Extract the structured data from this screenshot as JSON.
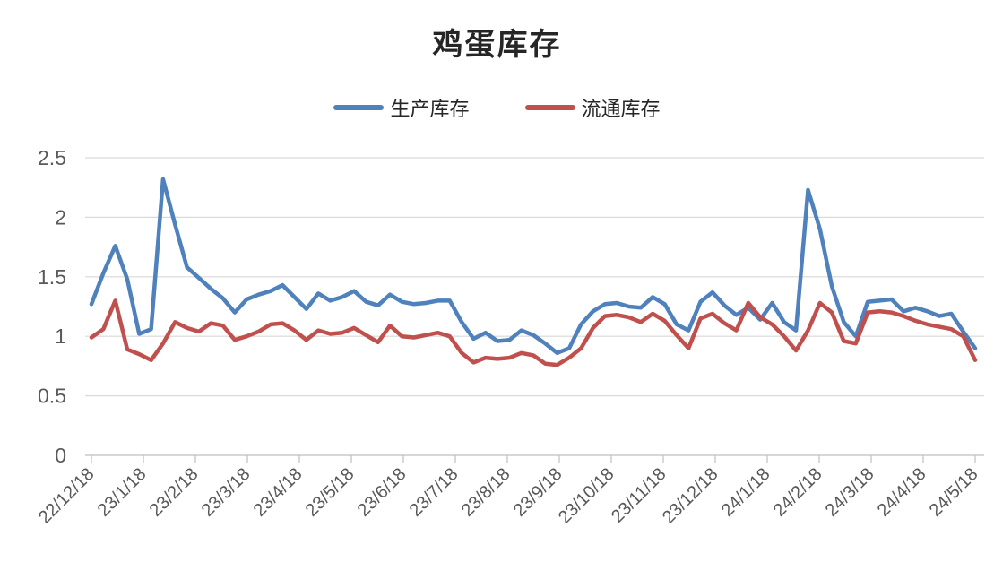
{
  "title": "鸡蛋库存",
  "legend": [
    {
      "label": "生产库存",
      "color": "#4F81BD"
    },
    {
      "label": "流通库存",
      "color": "#C0504D"
    }
  ],
  "colors": {
    "grid": "#D9D9D9",
    "axis": "#BFBFBF",
    "text": "#595959",
    "title_text": "#262626",
    "series_blue": "#4F81BD",
    "series_red": "#C0504D"
  },
  "chart_data": {
    "type": "line",
    "title": "鸡蛋库存",
    "xlabel": "",
    "ylabel": "",
    "ylim": [
      0,
      2.5
    ],
    "grid": true,
    "legend_position": "top",
    "y_ticks": [
      "0",
      "0.5",
      "1",
      "1.5",
      "2",
      "2.5"
    ],
    "x_labels": [
      "22/12/18",
      "23/1/18",
      "23/2/18",
      "23/3/18",
      "23/4/18",
      "23/5/18",
      "23/6/18",
      "23/7/18",
      "23/8/18",
      "23/9/18",
      "23/10/18",
      "23/11/18",
      "23/12/18",
      "24/1/18",
      "24/2/18",
      "24/3/18",
      "24/4/18",
      "24/5/18"
    ],
    "series": [
      {
        "name": "生产库存",
        "color": "#4F81BD",
        "values": [
          1.27,
          1.53,
          1.76,
          1.48,
          1.02,
          1.06,
          2.32,
          1.94,
          1.58,
          1.49,
          1.4,
          1.32,
          1.2,
          1.31,
          1.35,
          1.38,
          1.43,
          1.33,
          1.23,
          1.36,
          1.3,
          1.33,
          1.38,
          1.29,
          1.26,
          1.35,
          1.29,
          1.27,
          1.28,
          1.3,
          1.3,
          1.12,
          0.98,
          1.03,
          0.96,
          0.97,
          1.05,
          1.01,
          0.94,
          0.86,
          0.9,
          1.1,
          1.21,
          1.27,
          1.28,
          1.25,
          1.24,
          1.33,
          1.27,
          1.1,
          1.05,
          1.29,
          1.37,
          1.26,
          1.18,
          1.24,
          1.14,
          1.28,
          1.12,
          1.05,
          2.23,
          1.9,
          1.42,
          1.12,
          1.0,
          1.29,
          1.3,
          1.31,
          1.21,
          1.24,
          1.21,
          1.17,
          1.19,
          1.04,
          0.9
        ]
      },
      {
        "name": "流通库存",
        "color": "#C0504D",
        "values": [
          0.99,
          1.06,
          1.3,
          0.89,
          0.85,
          0.8,
          0.94,
          1.12,
          1.07,
          1.04,
          1.11,
          1.09,
          0.97,
          1.0,
          1.04,
          1.1,
          1.11,
          1.05,
          0.97,
          1.05,
          1.02,
          1.03,
          1.07,
          1.01,
          0.95,
          1.09,
          1.0,
          0.99,
          1.01,
          1.03,
          1.0,
          0.86,
          0.78,
          0.82,
          0.81,
          0.82,
          0.86,
          0.84,
          0.77,
          0.76,
          0.82,
          0.9,
          1.07,
          1.17,
          1.18,
          1.16,
          1.12,
          1.19,
          1.13,
          1.01,
          0.9,
          1.15,
          1.19,
          1.11,
          1.05,
          1.28,
          1.16,
          1.1,
          1.0,
          0.88,
          1.05,
          1.28,
          1.2,
          0.96,
          0.94,
          1.2,
          1.21,
          1.2,
          1.17,
          1.13,
          1.1,
          1.08,
          1.06,
          1.0,
          0.8
        ]
      }
    ]
  }
}
